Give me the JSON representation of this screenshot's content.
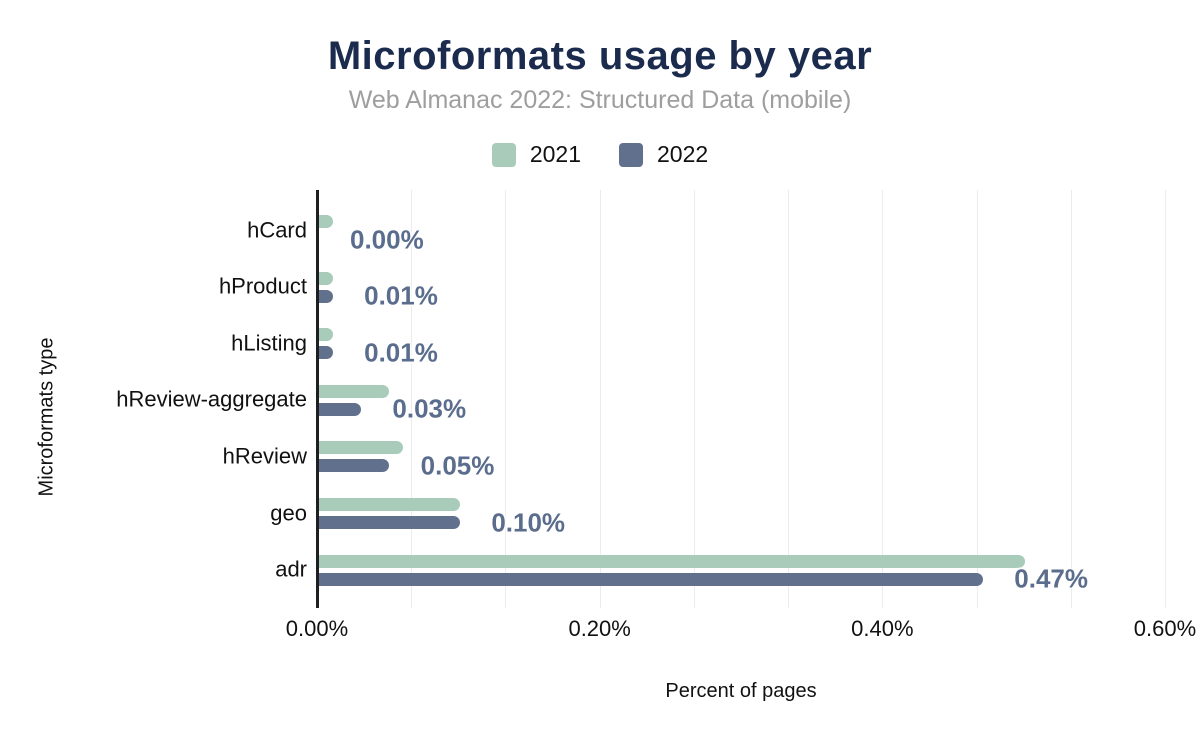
{
  "header": {
    "title": "Microformats usage by year",
    "subtitle": "Web Almanac 2022: Structured Data (mobile)"
  },
  "chart_data": {
    "type": "bar",
    "orientation": "horizontal",
    "title": "Microformats usage by year",
    "subtitle": "Web Almanac 2022: Structured Data (mobile)",
    "categories": [
      "hCard",
      "hProduct",
      "hListing",
      "hReview-aggregate",
      "hReview",
      "geo",
      "adr"
    ],
    "series": [
      {
        "name": "2021",
        "color": "#a8ccb9",
        "values": [
          0.01,
          0.01,
          0.01,
          0.05,
          0.06,
          0.1,
          0.5
        ]
      },
      {
        "name": "2022",
        "color": "#61718d",
        "values": [
          0.0,
          0.01,
          0.01,
          0.03,
          0.05,
          0.1,
          0.47
        ]
      }
    ],
    "data_labels": [
      "0.00%",
      "0.01%",
      "0.01%",
      "0.03%",
      "0.05%",
      "0.10%",
      "0.47%"
    ],
    "data_labels_series": "2022",
    "xlabel": "Percent of pages",
    "ylabel": "Microformats type",
    "xlim": [
      0,
      0.6
    ],
    "x_ticks": [
      {
        "value": 0.0,
        "label": "0.00%"
      },
      {
        "value": 0.2,
        "label": "0.20%"
      },
      {
        "value": 0.4,
        "label": "0.40%"
      },
      {
        "value": 0.6,
        "label": "0.60%"
      }
    ],
    "minor_grid_divisions": 9,
    "grid": true,
    "legend_position": "top"
  },
  "colors": {
    "title": "#1b2b4d",
    "subtitle": "#9e9e9e",
    "series_2021": "#a8ccb9",
    "series_2022": "#61718d",
    "value_label": "#5a6d8c",
    "axis_line": "#1f1f1f",
    "gridline": "#ececec",
    "axis_text": "#111111",
    "background": "#ffffff"
  }
}
